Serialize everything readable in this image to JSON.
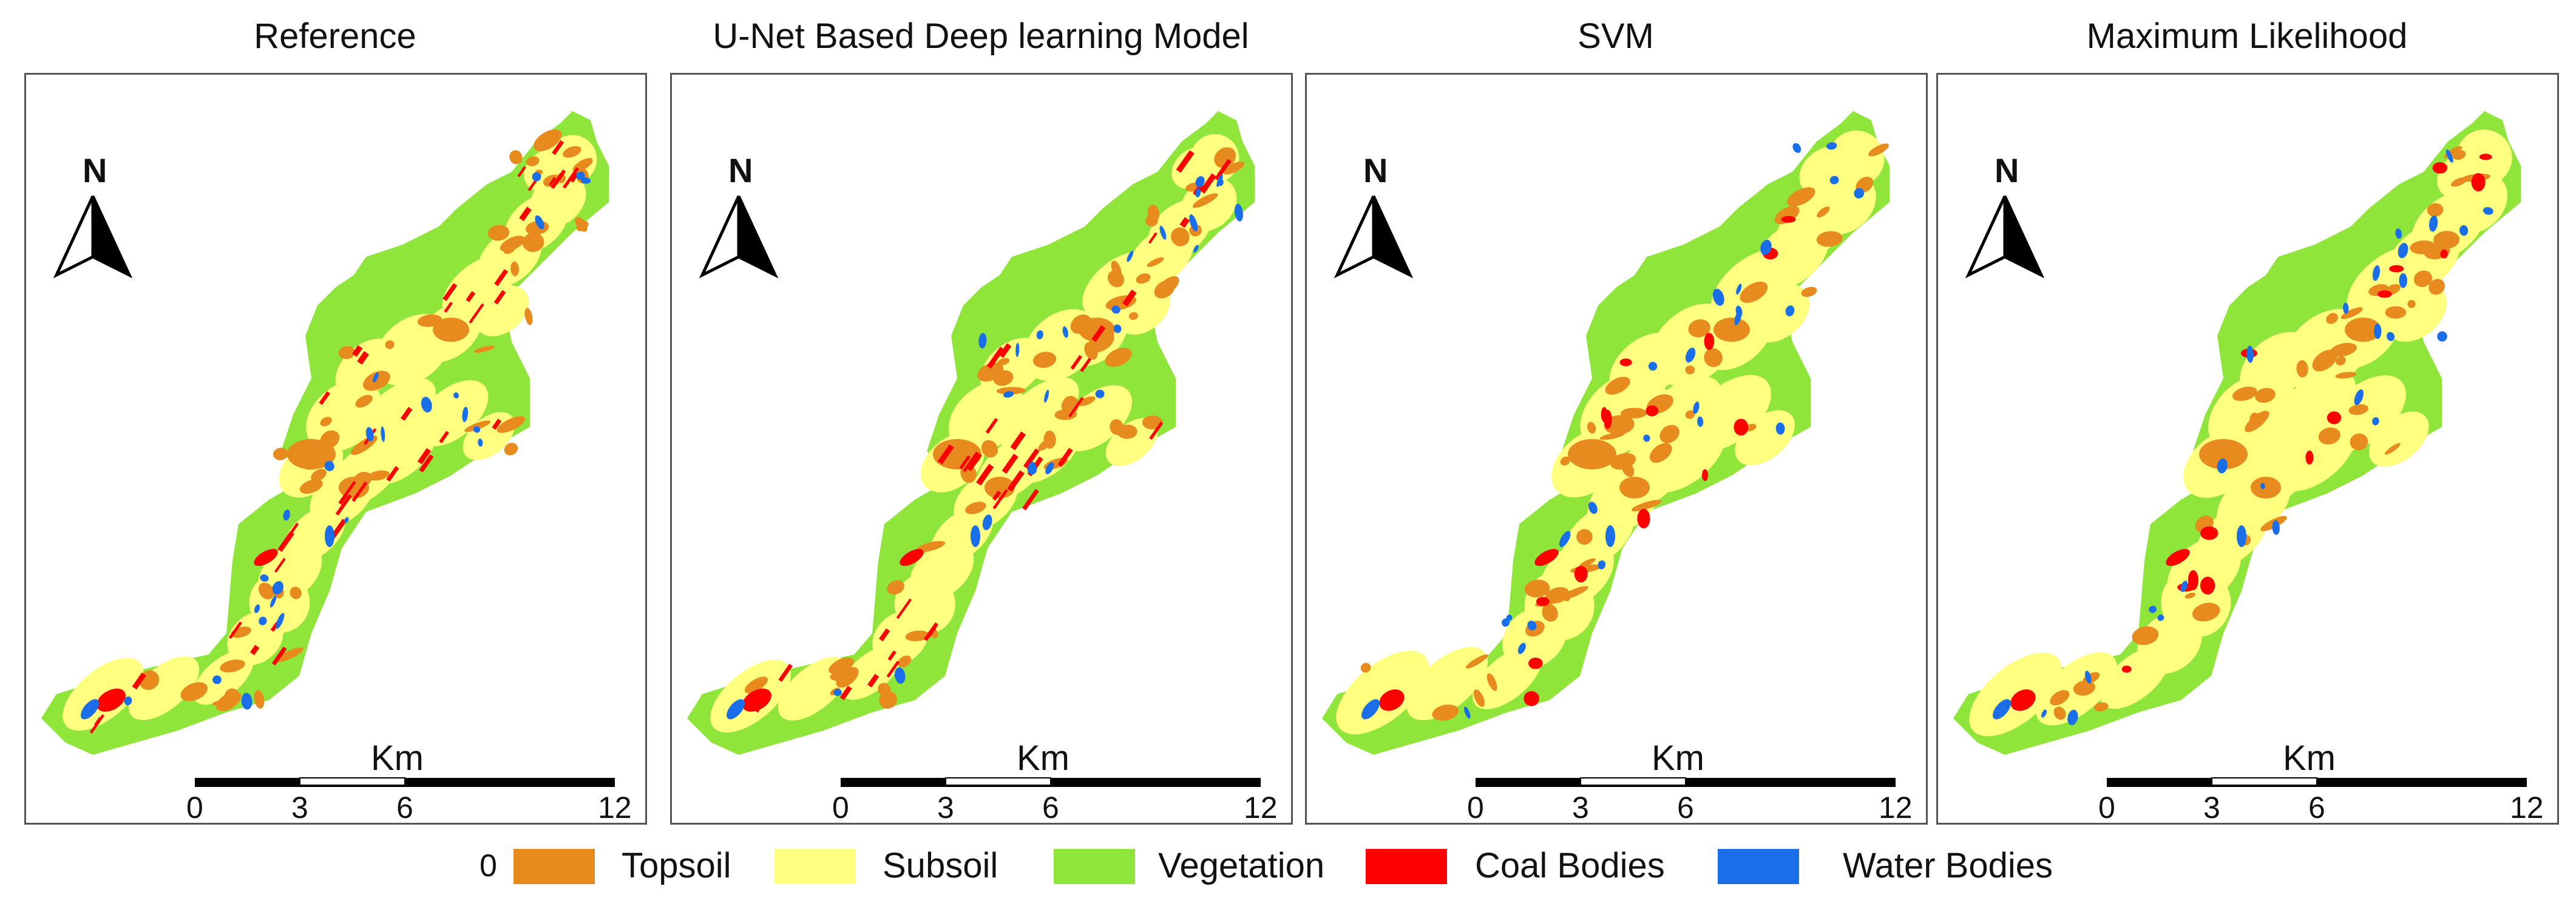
{
  "panels": [
    {
      "title": "Reference",
      "key": "ref"
    },
    {
      "title": "U-Net Based Deep learning Model",
      "key": "unet"
    },
    {
      "title": "SVM",
      "key": "svm"
    },
    {
      "title": "Maximum Likelihood",
      "key": "ml"
    }
  ],
  "north_label": "N",
  "scale": {
    "unit": "Km",
    "ticks": [
      "0",
      "3",
      "6",
      "12"
    ]
  },
  "legend": {
    "zero": "0",
    "items": [
      {
        "label": "Topsoil",
        "color": "#E88B1F"
      },
      {
        "label": "Subsoil",
        "color": "#FFFF80"
      },
      {
        "label": "Vegetation",
        "color": "#8FE53A"
      },
      {
        "label": "Coal Bodies",
        "color": "#FF0000"
      },
      {
        "label": "Water Bodies",
        "color": "#1A6FE8"
      }
    ]
  },
  "colors": {
    "topsoil": "#E88B1F",
    "subsoil": "#FFFF80",
    "vegetation": "#8FE53A",
    "coal": "#FF0000",
    "water": "#1A6FE8"
  }
}
